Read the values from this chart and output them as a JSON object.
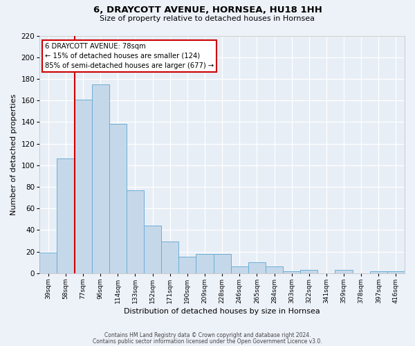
{
  "title": "6, DRAYCOTT AVENUE, HORNSEA, HU18 1HH",
  "subtitle": "Size of property relative to detached houses in Hornsea",
  "xlabel": "Distribution of detached houses by size in Hornsea",
  "ylabel": "Number of detached properties",
  "categories": [
    "39sqm",
    "58sqm",
    "77sqm",
    "96sqm",
    "114sqm",
    "133sqm",
    "152sqm",
    "171sqm",
    "190sqm",
    "209sqm",
    "228sqm",
    "246sqm",
    "265sqm",
    "284sqm",
    "303sqm",
    "322sqm",
    "341sqm",
    "359sqm",
    "378sqm",
    "397sqm",
    "416sqm"
  ],
  "values": [
    19,
    106,
    161,
    175,
    138,
    77,
    44,
    29,
    15,
    18,
    18,
    6,
    10,
    6,
    2,
    3,
    0,
    3,
    0,
    2,
    2
  ],
  "bar_color": "#c5d8ea",
  "bar_edge_color": "#6aaed6",
  "ylim": [
    0,
    220
  ],
  "yticks": [
    0,
    20,
    40,
    60,
    80,
    100,
    120,
    140,
    160,
    180,
    200,
    220
  ],
  "vline_color": "#cc0000",
  "vline_index": 2,
  "annotation_title": "6 DRAYCOTT AVENUE: 78sqm",
  "annotation_line1": "← 15% of detached houses are smaller (124)",
  "annotation_line2": "85% of semi-detached houses are larger (677) →",
  "annotation_box_facecolor": "#ffffff",
  "annotation_box_edgecolor": "#cc0000",
  "footer_line1": "Contains HM Land Registry data © Crown copyright and database right 2024.",
  "footer_line2": "Contains public sector information licensed under the Open Government Licence v3.0.",
  "fig_facecolor": "#edf2f9",
  "ax_facecolor": "#e8eef6"
}
